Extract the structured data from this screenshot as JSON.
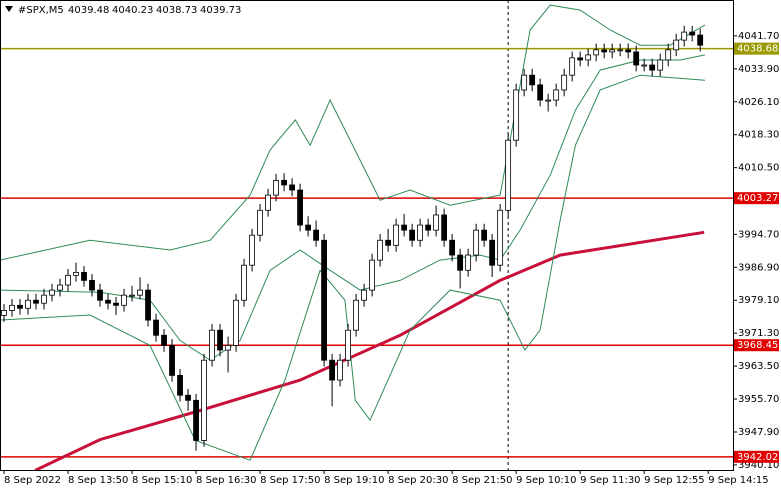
{
  "chart_data": {
    "type": "candlestick",
    "symbol": "#SPX,M5",
    "header_values": [
      4039.48,
      4040.23,
      4038.73,
      4039.73
    ],
    "candle_up_color": "#ffffff",
    "candle_down_color": "#000000",
    "candles": [
      [
        3975.5,
        3978.2,
        3974.0,
        3976.7
      ],
      [
        3976.7,
        3979.4,
        3975.2,
        3977.9
      ],
      [
        3977.9,
        3979.4,
        3975.7,
        3977.2
      ],
      [
        3977.2,
        3980.6,
        3975.7,
        3979.1
      ],
      [
        3979.1,
        3980.6,
        3976.9,
        3978.4
      ],
      [
        3978.4,
        3981.8,
        3976.9,
        3980.3
      ],
      [
        3980.3,
        3983.0,
        3978.8,
        3981.5
      ],
      [
        3981.5,
        3984.2,
        3980.0,
        3982.7
      ],
      [
        3982.7,
        3986.5,
        3981.2,
        3985.0
      ],
      [
        3985.0,
        3988.0,
        3983.5,
        3985.7
      ],
      [
        3985.7,
        3987.2,
        3982.3,
        3983.8
      ],
      [
        3983.8,
        3985.3,
        3980.0,
        3981.5
      ],
      [
        3981.5,
        3983.0,
        3977.6,
        3979.1
      ],
      [
        3979.1,
        3980.6,
        3976.9,
        3978.4
      ],
      [
        3978.4,
        3979.9,
        3975.6,
        3977.9
      ],
      [
        3977.9,
        3981.8,
        3976.4,
        3980.3
      ],
      [
        3980.3,
        3982.5,
        3978.8,
        3980.3
      ],
      [
        3980.3,
        3984.5,
        3979.3,
        3981.5
      ],
      [
        3981.5,
        3983.0,
        3972.9,
        3974.4
      ],
      [
        3974.4,
        3975.9,
        3969.3,
        3970.8
      ],
      [
        3970.8,
        3972.3,
        3966.9,
        3968.4
      ],
      [
        3968.4,
        3969.9,
        3959.8,
        3961.3
      ],
      [
        3961.3,
        3962.8,
        3955.1,
        3956.6
      ],
      [
        3956.6,
        3958.1,
        3952.9,
        3955.4
      ],
      [
        3955.4,
        3956.9,
        3943.5,
        3945.9
      ],
      [
        3945.9,
        3966.4,
        3944.4,
        3964.9
      ],
      [
        3964.9,
        3973.5,
        3963.4,
        3972.0
      ],
      [
        3972.0,
        3973.5,
        3965.8,
        3967.3
      ],
      [
        3967.3,
        3970.5,
        3962.0,
        3968.4
      ],
      [
        3968.4,
        3980.6,
        3966.9,
        3979.1
      ],
      [
        3979.1,
        3988.9,
        3977.6,
        3987.4
      ],
      [
        3987.4,
        3996.0,
        3985.9,
        3994.5
      ],
      [
        3994.5,
        4001.9,
        3993.0,
        4000.4
      ],
      [
        4000.4,
        4005.5,
        3998.9,
        4004.0
      ],
      [
        4004.0,
        4009.0,
        4002.5,
        4007.5
      ],
      [
        4007.5,
        4009.2,
        4004.9,
        4006.4
      ],
      [
        4006.4,
        4008.0,
        4003.7,
        4005.2
      ],
      [
        4005.2,
        4006.7,
        3995.4,
        3996.9
      ],
      [
        3996.9,
        3999.0,
        3994.2,
        3995.7
      ],
      [
        3995.7,
        3998.0,
        3991.8,
        3993.3
      ],
      [
        3993.3,
        3994.8,
        3963.4,
        3964.9
      ],
      [
        3964.9,
        3966.4,
        3954.0,
        3960.2
      ],
      [
        3960.2,
        3966.4,
        3958.7,
        3964.9
      ],
      [
        3964.9,
        3973.5,
        3963.4,
        3972.0
      ],
      [
        3972.0,
        3980.6,
        3970.5,
        3979.1
      ],
      [
        3979.1,
        3983.0,
        3977.6,
        3981.5
      ],
      [
        3981.5,
        3990.1,
        3980.0,
        3988.6
      ],
      [
        3988.6,
        3994.8,
        3987.1,
        3993.3
      ],
      [
        3993.3,
        3996.0,
        3990.6,
        3992.1
      ],
      [
        3992.1,
        3998.4,
        3990.6,
        3996.9
      ],
      [
        3996.9,
        3999.5,
        3994.2,
        3995.7
      ],
      [
        3995.7,
        3997.2,
        3991.8,
        3993.3
      ],
      [
        3993.3,
        3998.4,
        3991.8,
        3996.9
      ],
      [
        3996.9,
        3998.4,
        3994.2,
        3995.7
      ],
      [
        3995.7,
        4001.5,
        3994.2,
        3999.3
      ],
      [
        3999.3,
        4000.8,
        3991.8,
        3993.3
      ],
      [
        3993.3,
        3994.8,
        3988.3,
        3989.8
      ],
      [
        3989.8,
        3991.3,
        3981.9,
        3986.2
      ],
      [
        3986.2,
        3991.3,
        3984.7,
        3989.8
      ],
      [
        3989.8,
        3997.2,
        3988.3,
        3995.7
      ],
      [
        3995.7,
        3997.2,
        3991.8,
        3993.3
      ],
      [
        3993.3,
        3994.8,
        3984.6,
        3987.4
      ],
      [
        3987.4,
        4001.9,
        3985.9,
        4000.4
      ],
      [
        4000.4,
        4018.5,
        3998.9,
        4017.0
      ],
      [
        4017.0,
        4030.4,
        4015.5,
        4028.9
      ],
      [
        4028.9,
        4033.9,
        4027.4,
        4032.4
      ],
      [
        4032.4,
        4033.9,
        4028.6,
        4030.1
      ],
      [
        4030.1,
        4031.6,
        4025.0,
        4026.5
      ],
      [
        4026.5,
        4028.0,
        4023.8,
        4026.5
      ],
      [
        4026.5,
        4030.4,
        4025.0,
        4028.9
      ],
      [
        4028.9,
        4033.9,
        4027.4,
        4032.4
      ],
      [
        4032.4,
        4038.0,
        4030.9,
        4036.5
      ],
      [
        4036.5,
        4038.0,
        4034.5,
        4036.0
      ],
      [
        4036.0,
        4038.7,
        4034.5,
        4037.2
      ],
      [
        4037.2,
        4039.9,
        4035.7,
        4038.4
      ],
      [
        4038.4,
        4039.9,
        4036.4,
        4037.9
      ],
      [
        4037.9,
        4039.9,
        4036.4,
        4038.4
      ],
      [
        4038.4,
        4039.9,
        4036.9,
        4038.4
      ],
      [
        4038.4,
        4039.9,
        4036.4,
        4037.9
      ],
      [
        4037.9,
        4039.4,
        4033.3,
        4034.8
      ],
      [
        4034.8,
        4036.3,
        4033.3,
        4034.8
      ],
      [
        4034.8,
        4036.3,
        4032.1,
        4033.6
      ],
      [
        4033.6,
        4037.5,
        4032.1,
        4036.0
      ],
      [
        4036.0,
        4039.9,
        4034.5,
        4038.4
      ],
      [
        4038.4,
        4042.2,
        4036.9,
        4040.7
      ],
      [
        4040.7,
        4044.1,
        4039.2,
        4042.6
      ],
      [
        4042.6,
        4044.1,
        4040.4,
        4041.9
      ],
      [
        4041.9,
        4043.4,
        4038.0,
        4039.5
      ]
    ],
    "lines": [
      {
        "color": "#c8103a",
        "width": 3,
        "x": [
          3.9,
          12,
          24.5,
          37,
          49.5,
          62,
          69.5,
          87.5
        ],
        "values": [
          3938.8,
          3946.1,
          3953.0,
          3960.2,
          3970.8,
          3983.8,
          3989.8,
          3995.2
        ]
      },
      {
        "color": "#2e8b57",
        "width": 1,
        "x": [
          -0.5,
          10.75,
          20.75,
          25.75,
          30.75,
          33.25,
          36.4,
          38.25,
          40.75,
          43.25,
          47,
          50.75,
          55.75,
          62,
          65.75,
          68.25,
          72,
          75.75,
          79.5,
          83.25,
          87.6
        ],
        "values": [
          3988.6,
          3993.3,
          3991.0,
          3993.3,
          4004.0,
          4014.7,
          4021.8,
          4015.8,
          4026.5,
          4017.0,
          4002.8,
          4005.2,
          4001.6,
          4004.0,
          4043.1,
          4049.0,
          4047.8,
          4043.1,
          4039.5,
          4039.5,
          4044.3
        ]
      },
      {
        "color": "#2e8b57",
        "width": 1,
        "x": [
          -0.5,
          12,
          18.25,
          22,
          25.75,
          29.5,
          33.25,
          37,
          40.75,
          44.5,
          49.5,
          54.5,
          59.5,
          62,
          64.5,
          68.25,
          71.4,
          74.5,
          79.5,
          84.5,
          87.6
        ],
        "values": [
          3981.5,
          3981.0,
          3979.1,
          3969.6,
          3964.9,
          3969.6,
          3986.2,
          3991.0,
          3986.2,
          3981.5,
          3983.8,
          3988.6,
          3989.8,
          3988.6,
          3995.7,
          4008.7,
          4024.1,
          4033.6,
          4036.0,
          4036.0,
          4037.2
        ]
      },
      {
        "color": "#2e8b57",
        "width": 1,
        "x": [
          -0.5,
          10.75,
          18.25,
          23.9,
          30.75,
          35.1,
          39.5,
          42.6,
          43.9,
          45.75,
          50.75,
          55.75,
          62,
          65.1,
          67,
          69.5,
          71.4,
          74.5,
          79.5,
          87.6
        ],
        "values": [
          3974.4,
          3975.6,
          3968.4,
          3945.9,
          3941.2,
          3960.2,
          3986.2,
          3979.1,
          3955.4,
          3950.7,
          3972.0,
          3981.5,
          3979.1,
          3967.3,
          3972.0,
          3998.1,
          4015.8,
          4028.9,
          4032.4,
          4031.2
        ]
      }
    ],
    "levels": [
      {
        "value": 4038.68,
        "color": "#9a9a00"
      },
      {
        "value": 4003.27,
        "color": "#e00000"
      },
      {
        "value": 3968.45,
        "color": "#e00000"
      },
      {
        "value": 3942.02,
        "color": "#e00000"
      }
    ],
    "vline": 63,
    "grid": false,
    "xlim": [
      -0.5,
      91.1
    ],
    "ylim": [
      3938.9,
      4050.2
    ],
    "yticks": [
      {
        "value": 4041.7,
        "label": "4041.70"
      },
      {
        "value": 4033.9,
        "label": "4033.90"
      },
      {
        "value": 4026.1,
        "label": "4026.10"
      },
      {
        "value": 4018.3,
        "label": "4018.30"
      },
      {
        "value": 4010.5,
        "label": "4010.50"
      },
      {
        "value": 3994.7,
        "label": "3994.70"
      },
      {
        "value": 3986.9,
        "label": "3986.90"
      },
      {
        "value": 3979.1,
        "label": "3979.10"
      },
      {
        "value": 3971.3,
        "label": "3971.30"
      },
      {
        "value": 3963.5,
        "label": "3963.50"
      },
      {
        "value": 3955.7,
        "label": "3955.70"
      },
      {
        "value": 3947.9,
        "label": "3947.90"
      },
      {
        "value": 3940.1,
        "label": "3940.10"
      }
    ],
    "xticks": [
      {
        "value": 0,
        "label": "8 Sep 2022"
      },
      {
        "value": 8,
        "label": "8 Sep 13:50"
      },
      {
        "value": 16,
        "label": "8 Sep 15:10"
      },
      {
        "value": 24,
        "label": "8 Sep 16:30"
      },
      {
        "value": 32,
        "label": "8 Sep 17:50"
      },
      {
        "value": 40,
        "label": "8 Sep 19:10"
      },
      {
        "value": 48,
        "label": "8 Sep 20:30"
      },
      {
        "value": 56,
        "label": "8 Sep 21:50"
      },
      {
        "value": 64,
        "label": "9 Sep 10:10"
      },
      {
        "value": 72,
        "label": "9 Sep 11:30"
      },
      {
        "value": 80,
        "label": "9 Sep 12:55"
      },
      {
        "value": 88,
        "label": "9 Sep 14:15"
      }
    ]
  }
}
